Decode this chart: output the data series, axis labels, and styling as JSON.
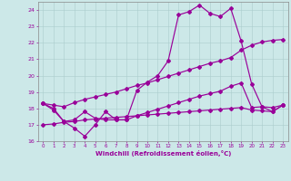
{
  "xlabel": "Windchill (Refroidissement éolien,°C)",
  "xlim_min": -0.5,
  "xlim_max": 23.5,
  "ylim_min": 16.0,
  "ylim_max": 24.5,
  "yticks": [
    16,
    17,
    18,
    19,
    20,
    21,
    22,
    23,
    24
  ],
  "xticks": [
    0,
    1,
    2,
    3,
    4,
    5,
    6,
    7,
    8,
    9,
    10,
    11,
    12,
    13,
    14,
    15,
    16,
    17,
    18,
    19,
    20,
    21,
    22,
    23
  ],
  "bg_color": "#cce8e8",
  "grid_color": "#aacccc",
  "line_color": "#990099",
  "curve1": [
    18.3,
    18.0,
    17.2,
    16.8,
    16.3,
    17.0,
    17.8,
    17.3,
    17.3,
    19.1,
    19.6,
    20.0,
    20.9,
    23.7,
    23.9,
    24.3,
    23.8,
    23.6,
    24.1,
    22.1,
    19.5,
    18.1,
    17.8,
    18.2
  ],
  "curve2": [
    18.3,
    18.2,
    18.1,
    18.35,
    18.55,
    18.7,
    18.85,
    19.0,
    19.2,
    19.4,
    19.55,
    19.75,
    19.95,
    20.15,
    20.35,
    20.55,
    20.75,
    20.9,
    21.1,
    21.55,
    21.85,
    22.05,
    22.15,
    22.2
  ],
  "curve3": [
    18.3,
    17.9,
    17.2,
    17.3,
    17.8,
    17.4,
    17.3,
    17.3,
    17.3,
    17.55,
    17.75,
    17.95,
    18.15,
    18.35,
    18.55,
    18.75,
    18.9,
    19.05,
    19.35,
    19.55,
    18.05,
    18.1,
    18.05,
    18.2
  ],
  "curve4": [
    17.0,
    17.05,
    17.15,
    17.2,
    17.3,
    17.35,
    17.4,
    17.45,
    17.5,
    17.55,
    17.6,
    17.65,
    17.7,
    17.75,
    17.8,
    17.85,
    17.9,
    17.95,
    18.0,
    18.05,
    17.9,
    17.85,
    17.8,
    18.2
  ]
}
